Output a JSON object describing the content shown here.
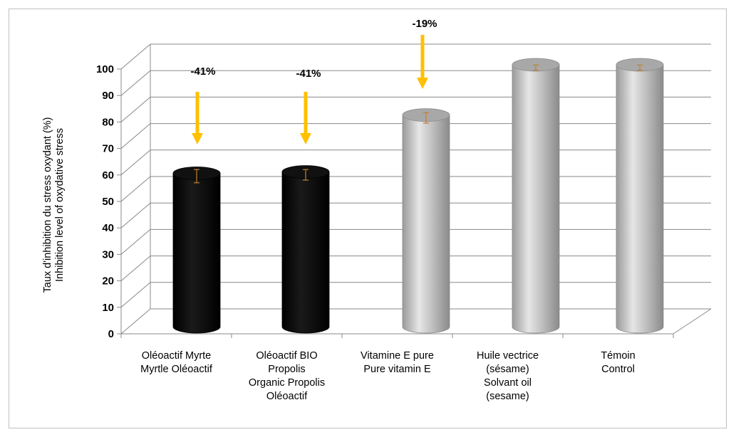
{
  "chart_data": {
    "type": "bar",
    "style": "3d-cylinder",
    "ylabel_lines": [
      "Taux d'inhibition du stress oxydant (%)",
      "Inhibition level of oxydative stress"
    ],
    "ylim": [
      0,
      100
    ],
    "yticks": [
      0,
      10,
      20,
      30,
      40,
      50,
      60,
      70,
      80,
      90,
      100
    ],
    "grid": true,
    "categories": [
      [
        "Oléoactif Myrte",
        "Myrtle Oléoactif"
      ],
      [
        "Oléoactif BIO",
        "Propolis",
        "Organic Propolis",
        "Oléoactif"
      ],
      [
        "Vitamine E pure",
        "Pure vitamin E"
      ],
      [
        "Huile vectrice",
        "(sésame)",
        "Solvant oil",
        "(sesame)"
      ],
      [
        "Témoin",
        "Control"
      ]
    ],
    "values": [
      59,
      59.5,
      81,
      100,
      100
    ],
    "errors": [
      2.5,
      2,
      2,
      1,
      1
    ],
    "bar_colors": [
      "#000000",
      "#000000",
      "#bdbdbd",
      "#bdbdbd",
      "#bdbdbd"
    ],
    "annotations": [
      {
        "bar": 0,
        "text": "-41%"
      },
      {
        "bar": 1,
        "text": "-41%"
      },
      {
        "bar": 2,
        "text": "-19%"
      }
    ],
    "annotation_arrow_color": "#ffc000",
    "errorbar_color": "#c08030"
  }
}
